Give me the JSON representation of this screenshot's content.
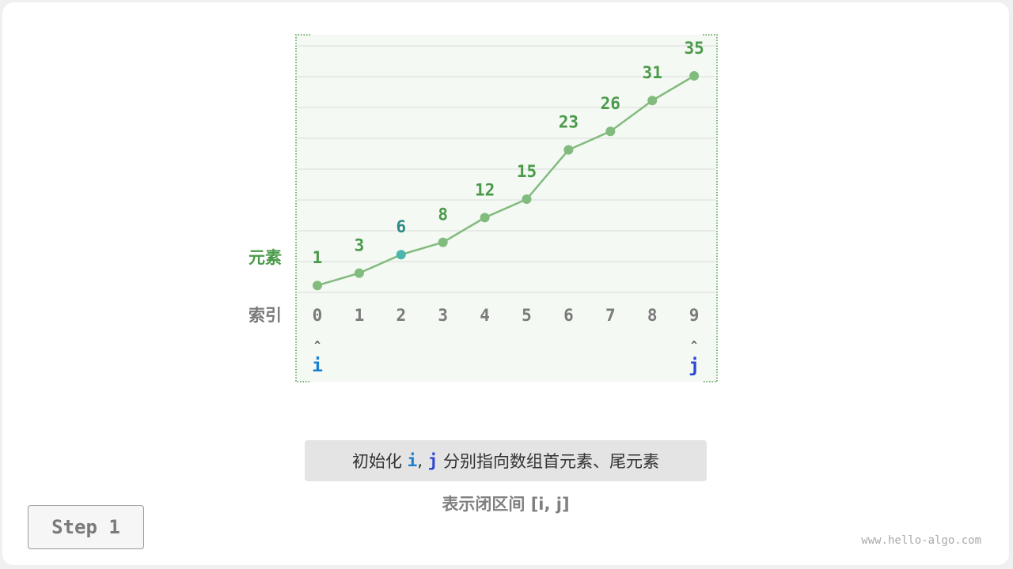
{
  "diagram": {
    "row_labels": {
      "elements": "元素",
      "indices": "索引"
    },
    "values": [
      1,
      3,
      6,
      8,
      12,
      15,
      23,
      26,
      31,
      35
    ],
    "indices": [
      "0",
      "1",
      "2",
      "3",
      "4",
      "5",
      "6",
      "7",
      "8",
      "9"
    ],
    "highlight_index": 2,
    "pointers": [
      {
        "label": "i",
        "index": 0,
        "color": "#1a7fd1"
      },
      {
        "label": "j",
        "index": 9,
        "color": "#2b45d4"
      }
    ],
    "arrow_glyph": "^",
    "colors": {
      "line": "#82bb7e",
      "value_text": "#4a9a4a",
      "highlight": "#4db6ac",
      "highlight_text": "#2e8b82",
      "index_text": "#7a7a7a",
      "panel": "#f4f9f3",
      "border": "#4a9a4a"
    }
  },
  "caption": {
    "prefix": "初始化 ",
    "i": "i",
    "sep": ", ",
    "j": "j",
    "suffix": " 分别指向数组首元素、尾元素"
  },
  "subtitle": "表示闭区间 [i, j]",
  "step_label": "Step 1",
  "watermark": "www.hello-algo.com"
}
